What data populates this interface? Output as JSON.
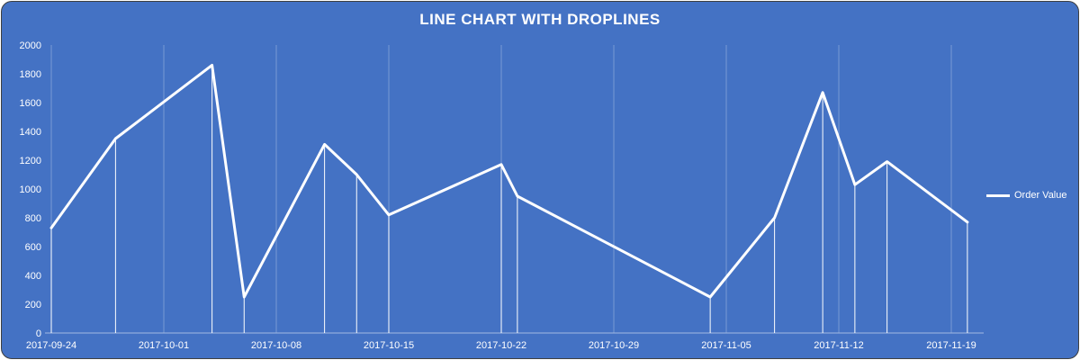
{
  "chart_data": {
    "type": "line",
    "title": "LINE CHART WITH DROPLINES",
    "ylabel": "",
    "xlabel": "",
    "ylim": [
      0,
      2000
    ],
    "y_ticks": [
      0,
      200,
      400,
      600,
      800,
      1000,
      1200,
      1400,
      1600,
      1800,
      2000
    ],
    "x_tick_labels": [
      "2017-09-24",
      "2017-10-01",
      "2017-10-08",
      "2017-10-15",
      "2017-10-22",
      "2017-10-29",
      "2017-11-05",
      "2017-11-12",
      "2017-11-19"
    ],
    "droplines": true,
    "grid": "vertical-only",
    "legend_position": "right",
    "series": [
      {
        "name": "Order Value",
        "points": [
          {
            "date": "2017-09-24",
            "value": 730
          },
          {
            "date": "2017-09-28",
            "value": 1350
          },
          {
            "date": "2017-10-04",
            "value": 1860
          },
          {
            "date": "2017-10-06",
            "value": 250
          },
          {
            "date": "2017-10-11",
            "value": 1310
          },
          {
            "date": "2017-10-13",
            "value": 1100
          },
          {
            "date": "2017-10-15",
            "value": 820
          },
          {
            "date": "2017-10-22",
            "value": 1170
          },
          {
            "date": "2017-10-23",
            "value": 950
          },
          {
            "date": "2017-11-04",
            "value": 250
          },
          {
            "date": "2017-11-08",
            "value": 800
          },
          {
            "date": "2017-11-11",
            "value": 1670
          },
          {
            "date": "2017-11-13",
            "value": 1030
          },
          {
            "date": "2017-11-15",
            "value": 1190
          },
          {
            "date": "2017-11-20",
            "value": 770
          }
        ]
      }
    ],
    "colors": {
      "background": "#4472C4",
      "line": "#FFFFFF",
      "gridline": "#7899D4",
      "axis": "#A2B9E2",
      "dropline": "#FFFFFF",
      "text": "#FFFFFF",
      "frame_border": "#3F3F3F"
    }
  }
}
